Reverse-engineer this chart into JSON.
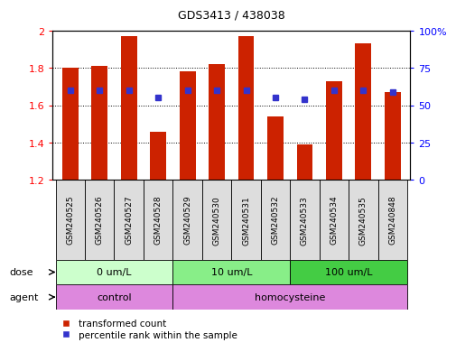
{
  "title": "GDS3413 / 438038",
  "samples": [
    "GSM240525",
    "GSM240526",
    "GSM240527",
    "GSM240528",
    "GSM240529",
    "GSM240530",
    "GSM240531",
    "GSM240532",
    "GSM240533",
    "GSM240534",
    "GSM240535",
    "GSM240848"
  ],
  "bar_values": [
    1.8,
    1.81,
    1.97,
    1.46,
    1.78,
    1.82,
    1.97,
    1.54,
    1.39,
    1.73,
    1.93,
    1.67
  ],
  "blue_values": [
    1.68,
    1.68,
    1.68,
    1.64,
    1.68,
    1.68,
    1.68,
    1.64,
    1.63,
    1.68,
    1.68,
    1.67
  ],
  "ymin": 1.2,
  "ymax": 2.0,
  "bar_color": "#cc2200",
  "blue_color": "#3333cc",
  "bar_bottom": 1.2,
  "dose_groups": [
    {
      "label": "0 um/L",
      "start": 0,
      "end": 4,
      "color": "#ccffcc"
    },
    {
      "label": "10 um/L",
      "start": 4,
      "end": 8,
      "color": "#88ee88"
    },
    {
      "label": "100 um/L",
      "start": 8,
      "end": 12,
      "color": "#44cc44"
    }
  ],
  "agent_groups": [
    {
      "label": "control",
      "start": 0,
      "end": 4,
      "color": "#dd88dd"
    },
    {
      "label": "homocysteine",
      "start": 4,
      "end": 12,
      "color": "#dd88dd"
    }
  ],
  "dose_label": "dose",
  "agent_label": "agent",
  "right_axis_ticks": [
    0,
    25,
    50,
    75,
    100
  ],
  "right_axis_labels": [
    "0",
    "25",
    "50",
    "75",
    "100%"
  ],
  "left_axis_ticks": [
    1.2,
    1.4,
    1.6,
    1.8,
    2.0
  ],
  "left_axis_labels": [
    "1.2",
    "1.4",
    "1.6",
    "1.8",
    "2"
  ],
  "legend_items": [
    {
      "label": "transformed count",
      "color": "#cc2200"
    },
    {
      "label": "percentile rank within the sample",
      "color": "#3333cc"
    }
  ]
}
